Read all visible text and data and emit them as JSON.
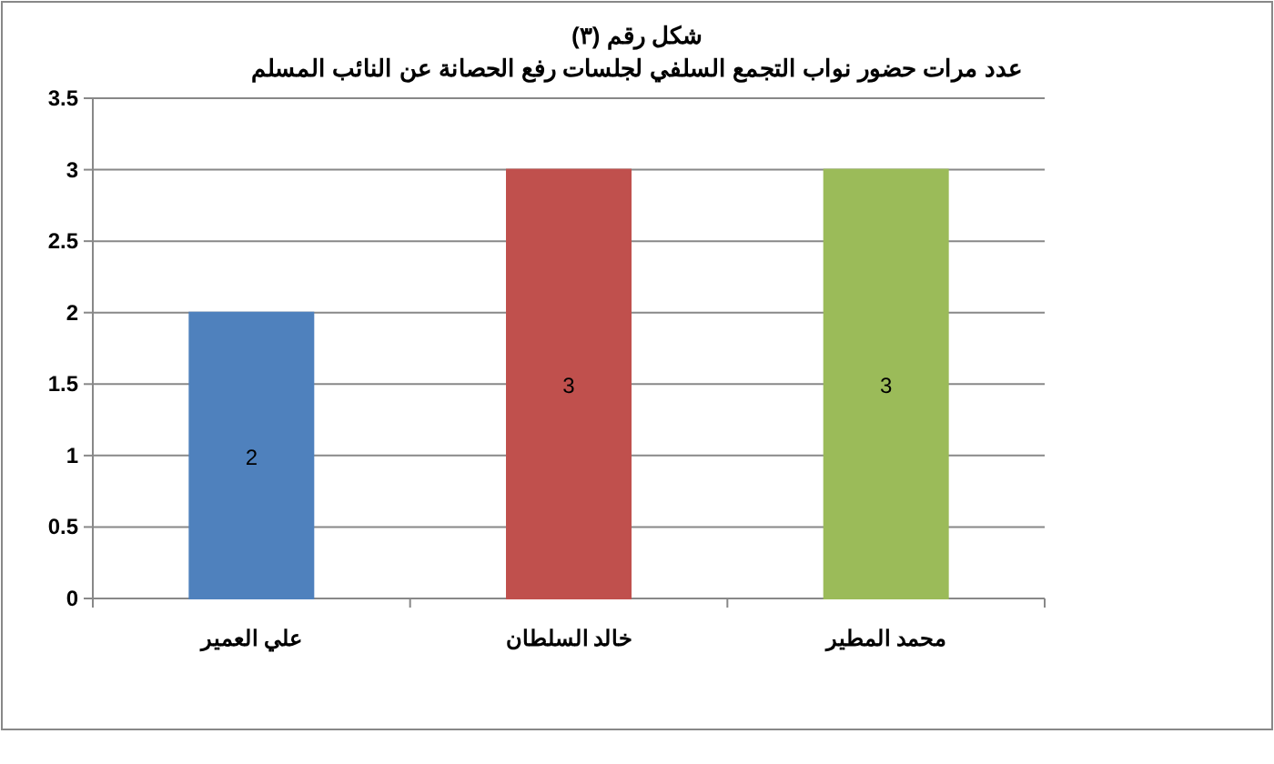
{
  "chart_data": {
    "type": "bar",
    "title": "شكل رقم (٣)",
    "subtitle": "عدد مرات حضور نواب التجمع السلفي لجلسات رفع الحصانة عن النائب المسلم",
    "categories": [
      "علي العمير",
      "خالد السلطان",
      "محمد المطير"
    ],
    "values": [
      2,
      3,
      3
    ],
    "colors": [
      "#4f81bd",
      "#c0504d",
      "#9bbb59"
    ],
    "ylim": [
      0,
      3.5
    ],
    "yticks": [
      0,
      0.5,
      1,
      1.5,
      2,
      2.5,
      3,
      3.5
    ],
    "grid": "y",
    "data_labels": true
  }
}
